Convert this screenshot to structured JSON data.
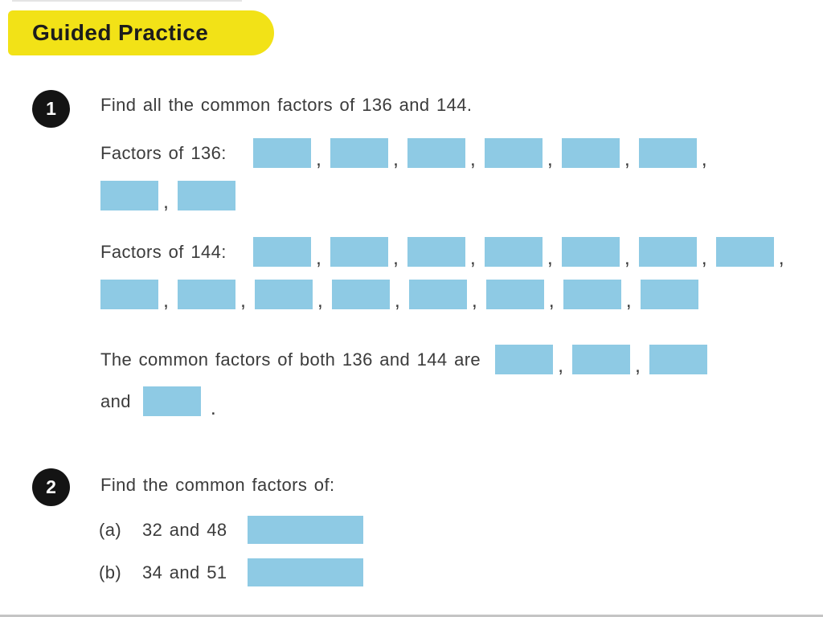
{
  "separator": ",",
  "colors": {
    "banner_yellow": "#F2E217",
    "box_blue": "#8ECAE4",
    "text_dark": "#3B3B3B",
    "badge_black": "#141414"
  },
  "header": {
    "title": "Guided Practice"
  },
  "q1": {
    "number": "1",
    "prompt": "Find all the common factors of 136 and 144.",
    "factors_136": {
      "label": "Factors of 136:",
      "row1_count": 6,
      "row2_count": 2
    },
    "factors_144": {
      "label": "Factors of 144:",
      "row1_count": 7,
      "row2_count": 8
    },
    "common": {
      "lead": "The common factors of both 136 and 144 are",
      "count": 3,
      "and_label": "and",
      "and_count": 1,
      "period": "."
    }
  },
  "q2": {
    "number": "2",
    "prompt": "Find the common factors of:",
    "parts": [
      {
        "label": "(a)",
        "numbers": "32 and 48"
      },
      {
        "label": "(b)",
        "numbers": "34 and 51"
      }
    ]
  }
}
